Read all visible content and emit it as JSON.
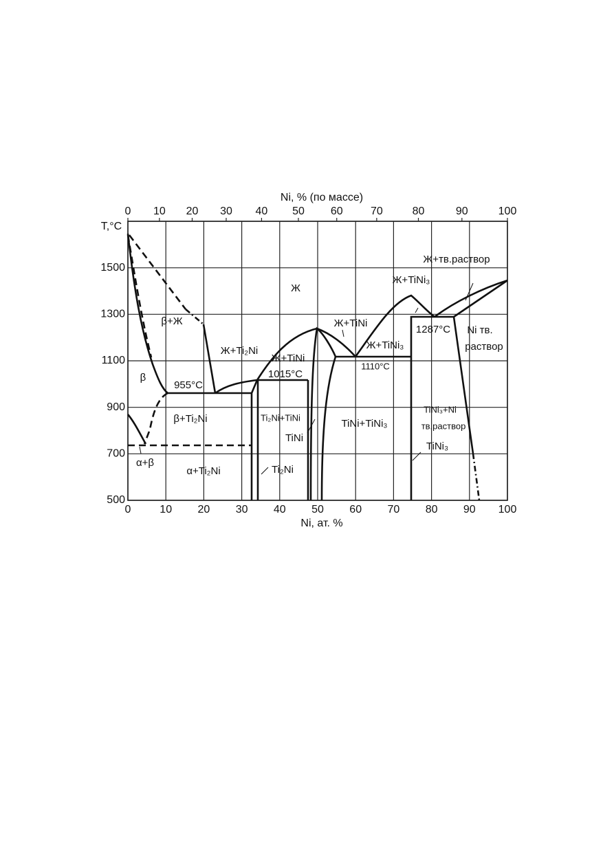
{
  "axes": {
    "x_bottom": {
      "label": "Ni, ат. %",
      "lim": [
        0,
        100
      ],
      "ticks": [
        0,
        10,
        20,
        30,
        40,
        50,
        60,
        70,
        80,
        90,
        100
      ]
    },
    "x_top": {
      "label": "Ni, % (по массе)",
      "ticks": [
        0,
        10,
        20,
        30,
        40,
        50,
        60,
        70,
        80,
        90,
        100
      ]
    },
    "y": {
      "label": "T,°C",
      "lim": [
        500,
        1700
      ],
      "ticks": [
        500,
        700,
        900,
        1100,
        1300,
        1500
      ]
    }
  },
  "labels": [
    "Ж",
    "Ж+TiNi₃",
    "Ж+тв.раствор",
    "β+Ж",
    "Ж+Ti₂Ni",
    "Ж+TiNi",
    "1015°C",
    "Ж+TiNi",
    "Ж+TiNi₃",
    "1287°C",
    "Ni тв.",
    "раствор",
    "β",
    "955°C",
    "1110°C",
    "β+Ti₂Ni",
    "Ti₂Ni+TiNi",
    "TiNi",
    "TiNi+TiNi₃",
    "TiNi₃+Ni",
    "тв.раствор",
    "TiNi₃",
    "α+β",
    "α+Ti₂Ni",
    "Ti₂Ni"
  ]
}
